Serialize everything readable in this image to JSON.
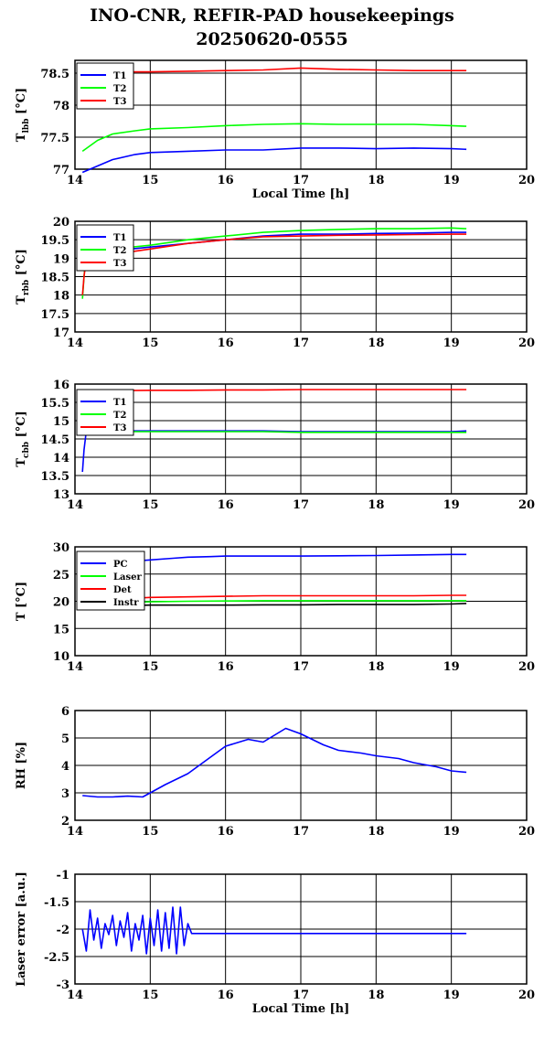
{
  "title_line1": "INO-CNR, REFIR-PAD housekeepings",
  "title_line2": "20250620-0555",
  "colors": {
    "T1": "#0000ff",
    "T2": "#00ff00",
    "T3": "#ff0000",
    "PC": "#0000ff",
    "Laser": "#00ff00",
    "Det": "#ff0000",
    "Instr": "#000000",
    "RH": "#0000ff",
    "LaserErr": "#0000ff"
  },
  "chart_data": [
    {
      "type": "line",
      "ylabel_main": "T",
      "ylabel_sub": "lbb",
      "ylabel_unit": " [°C]",
      "xlabel": "Local Time [h]",
      "xlim": [
        14,
        20
      ],
      "ylim": [
        77,
        78.7
      ],
      "yticks": [
        77,
        77.5,
        78,
        78.5
      ],
      "xticks": [
        14,
        15,
        16,
        17,
        18,
        19,
        20
      ],
      "series": [
        {
          "name": "T1",
          "color_key": "T1",
          "x": [
            14.1,
            14.3,
            14.5,
            14.8,
            15.0,
            15.5,
            16.0,
            16.5,
            17.0,
            17.5,
            18.0,
            18.5,
            19.0,
            19.2
          ],
          "y": [
            76.95,
            77.05,
            77.15,
            77.23,
            77.26,
            77.28,
            77.3,
            77.3,
            77.33,
            77.33,
            77.32,
            77.33,
            77.32,
            77.31
          ]
        },
        {
          "name": "T2",
          "color_key": "T2",
          "x": [
            14.1,
            14.3,
            14.5,
            14.8,
            15.0,
            15.5,
            16.0,
            16.5,
            17.0,
            17.5,
            18.0,
            18.5,
            19.0,
            19.2
          ],
          "y": [
            77.28,
            77.45,
            77.55,
            77.6,
            77.63,
            77.65,
            77.68,
            77.7,
            77.71,
            77.7,
            77.7,
            77.7,
            77.68,
            77.67
          ]
        },
        {
          "name": "T3",
          "color_key": "T3",
          "x": [
            14.1,
            14.5,
            15.0,
            15.5,
            16.0,
            16.5,
            17.0,
            17.5,
            18.0,
            18.5,
            19.0,
            19.2
          ],
          "y": [
            78.52,
            78.52,
            78.52,
            78.53,
            78.54,
            78.55,
            78.58,
            78.56,
            78.55,
            78.54,
            78.54,
            78.54
          ]
        }
      ],
      "legend": [
        "T1",
        "T2",
        "T3"
      ]
    },
    {
      "type": "line",
      "ylabel_main": "T",
      "ylabel_sub": "rbb",
      "ylabel_unit": " [°C]",
      "xlabel": "",
      "xlim": [
        14,
        20
      ],
      "ylim": [
        17,
        20
      ],
      "yticks": [
        17,
        17.5,
        18,
        18.5,
        19,
        19.5,
        20
      ],
      "xticks": [
        14,
        15,
        16,
        17,
        18,
        19,
        20
      ],
      "series": [
        {
          "name": "T1",
          "color_key": "T1",
          "x": [
            14.15,
            14.5,
            15.0,
            15.5,
            16.0,
            16.5,
            17.0,
            17.5,
            18.0,
            18.5,
            19.0,
            19.2
          ],
          "y": [
            19.1,
            19.2,
            19.3,
            19.4,
            19.5,
            19.6,
            19.65,
            19.65,
            19.67,
            19.68,
            19.7,
            19.7
          ]
        },
        {
          "name": "T2",
          "color_key": "T2",
          "x": [
            14.1,
            14.12,
            14.15,
            14.5,
            15.0,
            15.5,
            16.0,
            16.5,
            17.0,
            17.5,
            18.0,
            18.5,
            19.0,
            19.2
          ],
          "y": [
            17.9,
            18.5,
            19.2,
            19.25,
            19.35,
            19.5,
            19.6,
            19.7,
            19.75,
            19.78,
            19.8,
            19.8,
            19.82,
            19.8
          ]
        },
        {
          "name": "T3",
          "color_key": "T3",
          "x": [
            14.1,
            14.12,
            14.15,
            14.5,
            15.0,
            15.5,
            16.0,
            16.5,
            17.0,
            17.5,
            18.0,
            18.5,
            19.0,
            19.2
          ],
          "y": [
            18.0,
            18.5,
            19.0,
            19.1,
            19.25,
            19.4,
            19.5,
            19.58,
            19.6,
            19.62,
            19.63,
            19.64,
            19.65,
            19.65
          ]
        }
      ],
      "legend": [
        "T1",
        "T2",
        "T3"
      ]
    },
    {
      "type": "line",
      "ylabel_main": "T",
      "ylabel_sub": "cbb",
      "ylabel_unit": " [°C]",
      "xlabel": "",
      "xlim": [
        14,
        20
      ],
      "ylim": [
        13,
        16
      ],
      "yticks": [
        13,
        13.5,
        14,
        14.5,
        15,
        15.5,
        16
      ],
      "xticks": [
        14,
        15,
        16,
        17,
        18,
        19,
        20
      ],
      "series": [
        {
          "name": "T1",
          "color_key": "T1",
          "x": [
            14.1,
            14.12,
            14.15,
            14.5,
            15.0,
            15.5,
            16.0,
            16.5,
            17.0,
            17.5,
            18.0,
            18.5,
            19.0,
            19.2
          ],
          "y": [
            13.6,
            14.2,
            14.72,
            14.72,
            14.72,
            14.72,
            14.72,
            14.72,
            14.7,
            14.7,
            14.7,
            14.7,
            14.7,
            14.72
          ]
        },
        {
          "name": "T2",
          "color_key": "T2",
          "x": [
            14.15,
            14.5,
            15.0,
            15.5,
            16.0,
            16.5,
            17.0,
            17.5,
            18.0,
            18.5,
            19.0,
            19.2
          ],
          "y": [
            14.7,
            14.7,
            14.7,
            14.7,
            14.7,
            14.7,
            14.68,
            14.68,
            14.68,
            14.68,
            14.68,
            14.68
          ]
        },
        {
          "name": "T3",
          "color_key": "T3",
          "x": [
            14.15,
            14.5,
            15.0,
            15.5,
            16.0,
            16.5,
            17.0,
            17.5,
            18.0,
            18.5,
            19.0,
            19.2
          ],
          "y": [
            15.8,
            15.82,
            15.83,
            15.83,
            15.84,
            15.84,
            15.85,
            15.85,
            15.85,
            15.85,
            15.85,
            15.85
          ]
        }
      ],
      "legend": [
        "T1",
        "T2",
        "T3"
      ]
    },
    {
      "type": "line",
      "ylabel_main": "T [°C]",
      "ylabel_sub": "",
      "ylabel_unit": "",
      "xlabel": "",
      "xlim": [
        14,
        20
      ],
      "ylim": [
        10,
        30
      ],
      "yticks": [
        10,
        15,
        20,
        25,
        30
      ],
      "xticks": [
        14,
        15,
        16,
        17,
        18,
        19,
        20
      ],
      "series": [
        {
          "name": "PC",
          "color_key": "PC",
          "x": [
            14.7,
            15.0,
            15.3,
            15.5,
            15.8,
            16.0,
            16.5,
            17.0,
            17.5,
            18.0,
            18.5,
            19.0,
            19.2
          ],
          "y": [
            27.3,
            27.6,
            27.9,
            28.1,
            28.2,
            28.3,
            28.3,
            28.3,
            28.35,
            28.4,
            28.5,
            28.6,
            28.6
          ]
        },
        {
          "name": "Laser",
          "color_key": "Laser",
          "x": [
            14.7,
            15.0,
            15.5,
            16.0,
            16.5,
            17.0,
            17.5,
            18.0,
            18.5,
            19.0,
            19.2
          ],
          "y": [
            19.8,
            19.9,
            20.0,
            20.05,
            20.1,
            20.1,
            20.1,
            20.1,
            20.1,
            20.1,
            20.1
          ]
        },
        {
          "name": "Det",
          "color_key": "Det",
          "x": [
            14.7,
            15.0,
            15.5,
            16.0,
            16.5,
            17.0,
            17.5,
            18.0,
            18.5,
            19.0,
            19.2
          ],
          "y": [
            20.5,
            20.7,
            20.8,
            20.9,
            21.0,
            21.0,
            21.0,
            21.0,
            21.0,
            21.1,
            21.1
          ]
        },
        {
          "name": "Instr",
          "color_key": "Instr",
          "x": [
            14.7,
            15.0,
            15.5,
            16.0,
            16.5,
            17.0,
            17.5,
            18.0,
            18.5,
            19.0,
            19.2
          ],
          "y": [
            19.2,
            19.3,
            19.3,
            19.3,
            19.35,
            19.35,
            19.4,
            19.4,
            19.4,
            19.5,
            19.6
          ]
        }
      ],
      "legend": [
        "PC",
        "Laser",
        "Det",
        "Instr"
      ]
    },
    {
      "type": "line",
      "ylabel_main": "RH [%]",
      "ylabel_sub": "",
      "ylabel_unit": "",
      "xlabel": "",
      "xlim": [
        14,
        20
      ],
      "ylim": [
        2,
        6
      ],
      "yticks": [
        2,
        3,
        4,
        5,
        6
      ],
      "xticks": [
        14,
        15,
        16,
        17,
        18,
        19,
        20
      ],
      "series": [
        {
          "name": "RH",
          "color_key": "RH",
          "x": [
            14.1,
            14.3,
            14.5,
            14.7,
            14.9,
            15.0,
            15.2,
            15.5,
            15.8,
            16.0,
            16.3,
            16.5,
            16.8,
            17.0,
            17.3,
            17.5,
            17.8,
            18.0,
            18.3,
            18.5,
            18.8,
            19.0,
            19.2
          ],
          "y": [
            2.9,
            2.85,
            2.85,
            2.88,
            2.85,
            3.0,
            3.3,
            3.7,
            4.3,
            4.7,
            4.95,
            4.85,
            5.35,
            5.15,
            4.75,
            4.55,
            4.45,
            4.35,
            4.25,
            4.1,
            3.95,
            3.8,
            3.75
          ]
        }
      ],
      "legend": []
    },
    {
      "type": "line",
      "ylabel_main": "Laser error [a.u.]",
      "ylabel_sub": "",
      "ylabel_unit": "",
      "xlabel": "Local Time [h]",
      "xlim": [
        14,
        20
      ],
      "ylim": [
        -3,
        -1
      ],
      "yticks": [
        -3,
        -2.5,
        -2,
        -1.5,
        -1
      ],
      "xticks": [
        14,
        15,
        16,
        17,
        18,
        19,
        20
      ],
      "series": [
        {
          "name": "Laser error",
          "color_key": "LaserErr",
          "x": [
            14.1,
            14.15,
            14.2,
            14.25,
            14.3,
            14.35,
            14.4,
            14.45,
            14.5,
            14.55,
            14.6,
            14.65,
            14.7,
            14.75,
            14.8,
            14.85,
            14.9,
            14.95,
            15.0,
            15.05,
            15.1,
            15.15,
            15.2,
            15.25,
            15.3,
            15.35,
            15.4,
            15.45,
            15.5,
            15.55,
            16.0,
            16.5,
            17.0,
            17.5,
            18.0,
            18.5,
            19.0,
            19.2
          ],
          "y": [
            -2.0,
            -2.4,
            -1.65,
            -2.2,
            -1.8,
            -2.35,
            -1.9,
            -2.1,
            -1.75,
            -2.3,
            -1.85,
            -2.15,
            -1.7,
            -2.4,
            -1.9,
            -2.2,
            -1.75,
            -2.45,
            -1.8,
            -2.3,
            -1.65,
            -2.4,
            -1.7,
            -2.35,
            -1.6,
            -2.45,
            -1.6,
            -2.3,
            -1.9,
            -2.08,
            -2.08,
            -2.08,
            -2.08,
            -2.08,
            -2.08,
            -2.08,
            -2.08,
            -2.08
          ]
        }
      ],
      "legend": []
    }
  ]
}
